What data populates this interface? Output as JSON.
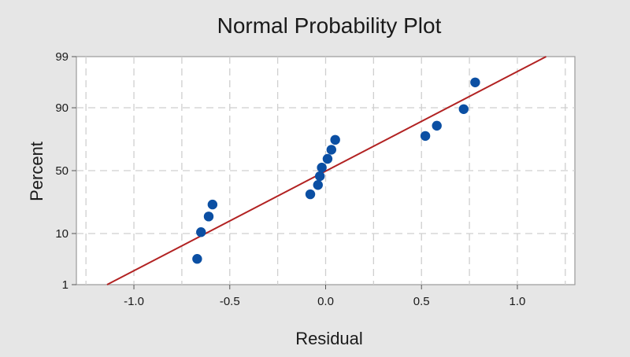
{
  "chart_data": {
    "type": "scatter",
    "title": "Normal Probability Plot",
    "xlabel": "Residual",
    "ylabel": "Percent",
    "xlim": [
      -1.3,
      1.3
    ],
    "ylim": [
      1,
      99
    ],
    "y_scale": "normal-probability",
    "grid": true,
    "x_ticks": [
      -1.0,
      -0.5,
      0.0,
      0.5,
      1.0
    ],
    "x_tick_labels": [
      "-1.0",
      "-0.5",
      "0.0",
      "0.5",
      "1.0"
    ],
    "y_ticks": [
      1,
      10,
      50,
      90,
      99
    ],
    "y_tick_labels": [
      "1",
      "10",
      "50",
      "90",
      "99"
    ],
    "points": [
      {
        "x": -0.67,
        "y": 3.6
      },
      {
        "x": -0.65,
        "y": 10.5
      },
      {
        "x": -0.61,
        "y": 17.5
      },
      {
        "x": -0.59,
        "y": 24.5
      },
      {
        "x": -0.08,
        "y": 31.5
      },
      {
        "x": -0.04,
        "y": 38.5
      },
      {
        "x": -0.03,
        "y": 45.5
      },
      {
        "x": -0.02,
        "y": 52.5
      },
      {
        "x": 0.01,
        "y": 59.5
      },
      {
        "x": 0.03,
        "y": 66.5
      },
      {
        "x": 0.05,
        "y": 73.5
      },
      {
        "x": 0.52,
        "y": 76.0
      },
      {
        "x": 0.58,
        "y": 82.0
      },
      {
        "x": 0.72,
        "y": 89.5
      },
      {
        "x": 0.78,
        "y": 96.4
      }
    ],
    "fit_line": {
      "x": [
        -1.14,
        1.15
      ],
      "y": [
        1.0,
        99.0
      ]
    },
    "colors": {
      "points": "#0b4fa3",
      "fit_line": "#b22222",
      "grid": "#cfcfcf",
      "plot_background": "#ffffff",
      "page_background": "#e6e6e6"
    }
  }
}
